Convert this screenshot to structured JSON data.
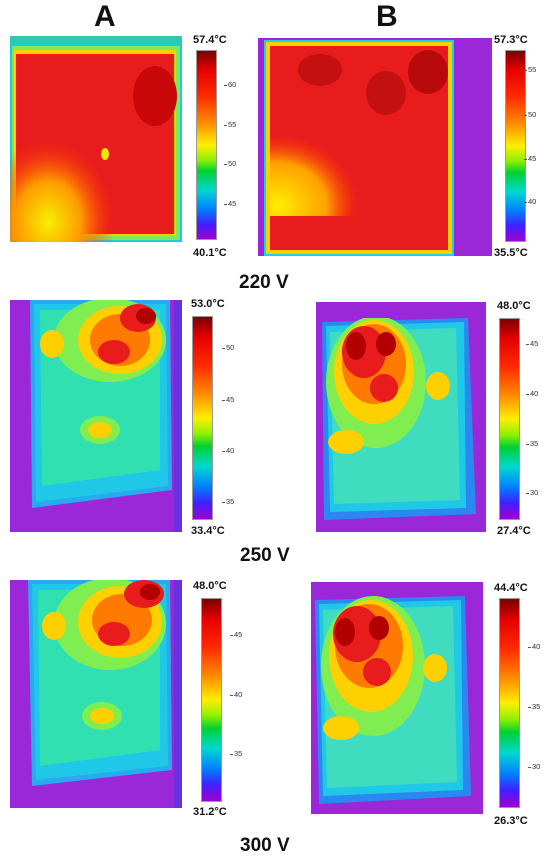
{
  "column_labels": [
    "A",
    "B"
  ],
  "rows": [
    {
      "voltage": "220 V",
      "panels": [
        {
          "max": "57.4°C",
          "min": "40.1°C",
          "ticks": [
            "60",
            "55",
            "50",
            "45"
          ]
        },
        {
          "max": "57.3°C",
          "min": "35.5°C",
          "ticks": [
            "55",
            "50",
            "45",
            "40"
          ]
        }
      ]
    },
    {
      "voltage": "250 V",
      "panels": [
        {
          "max": "53.0°C",
          "min": "33.4°C",
          "ticks": [
            "50",
            "45",
            "40",
            "35"
          ]
        },
        {
          "max": "48.0°C",
          "min": "27.4°C",
          "ticks": [
            "45",
            "40",
            "35",
            "30"
          ]
        }
      ]
    },
    {
      "voltage": "300 V",
      "panels": [
        {
          "max": "48.0°C",
          "min": "31.2°C",
          "ticks": [
            "45",
            "40",
            "35"
          ]
        },
        {
          "max": "44.4°C",
          "min": "26.3°C",
          "ticks": [
            "40",
            "35",
            "30"
          ]
        }
      ]
    }
  ],
  "colors": {
    "background": "#9a28d8",
    "hot": "#e81c1c",
    "warm": "#ffd000",
    "mid": "#20e060",
    "cool": "#20c8e8"
  }
}
